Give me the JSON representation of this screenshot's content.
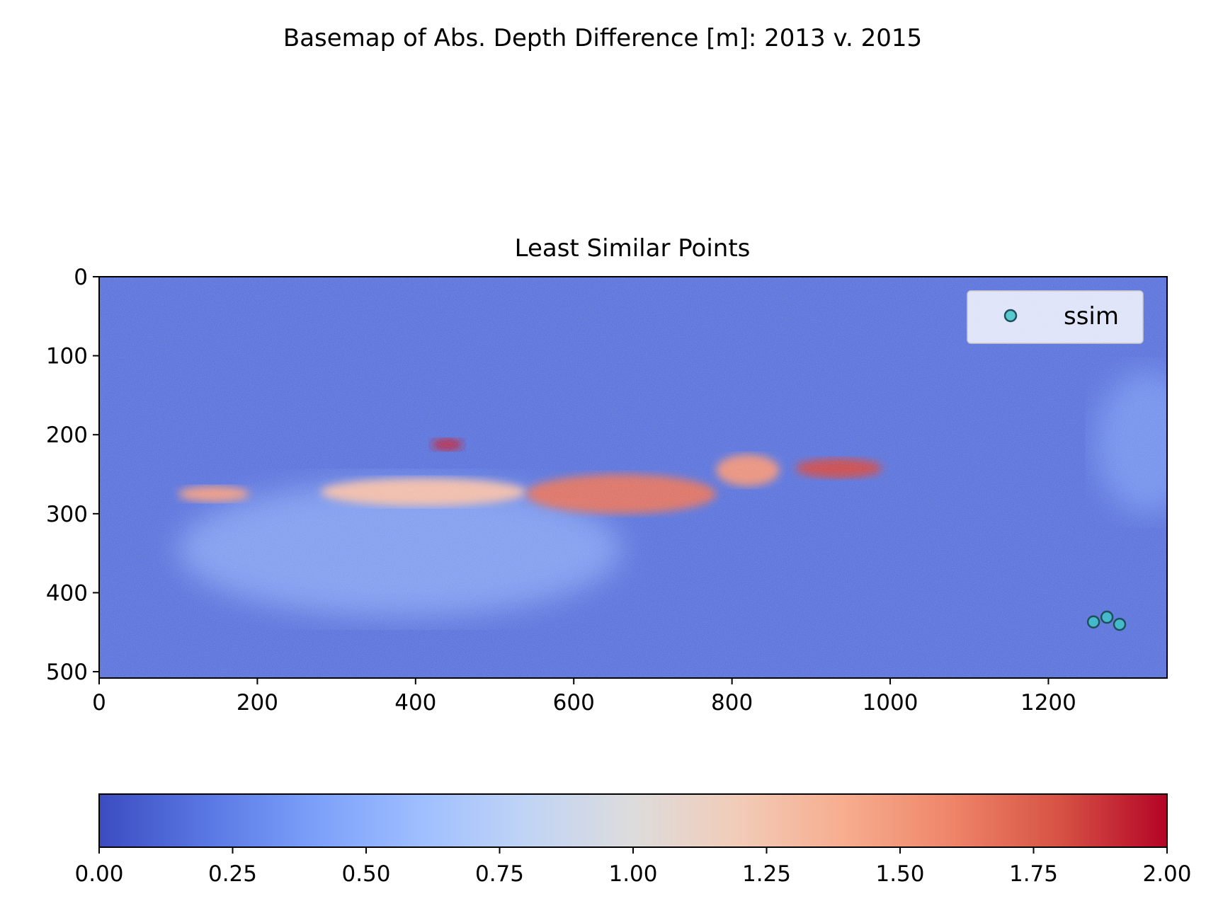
{
  "figure": {
    "suptitle": "Basemap of Abs. Depth Difference [m]: 2013 v. 2015"
  },
  "chart_data": [
    {
      "type": "heatmap",
      "title": "Least Similar Points",
      "xlabel": "",
      "ylabel": "",
      "xlim": [
        0,
        1350
      ],
      "ylim": [
        508,
        0
      ],
      "x_ticks": [
        0,
        200,
        400,
        600,
        800,
        1000,
        1200
      ],
      "y_ticks": [
        0,
        100,
        200,
        300,
        400,
        500
      ],
      "colormap": "coolwarm",
      "value_range": [
        0,
        2
      ],
      "background_value": 0.15,
      "features": [
        {
          "x": [
            100,
            190
          ],
          "y": [
            265,
            285
          ],
          "value": 1.5
        },
        {
          "x": [
            280,
            540
          ],
          "y": [
            255,
            290
          ],
          "value": 1.3
        },
        {
          "x": [
            420,
            460
          ],
          "y": [
            205,
            220
          ],
          "value": 1.95
        },
        {
          "x": [
            540,
            780
          ],
          "y": [
            250,
            300
          ],
          "value": 1.7
        },
        {
          "x": [
            780,
            860
          ],
          "y": [
            225,
            265
          ],
          "value": 1.55
        },
        {
          "x": [
            880,
            990
          ],
          "y": [
            230,
            255
          ],
          "value": 1.85
        },
        {
          "x": [
            100,
            660
          ],
          "y": [
            260,
            430
          ],
          "value": 0.6
        },
        {
          "x": [
            1260,
            1390
          ],
          "y": [
            120,
            300
          ],
          "value": 0.45
        }
      ],
      "scatter": {
        "name": "ssim",
        "marker_color": "#40c4c8",
        "edge_color": "#1f4f5a",
        "points": [
          {
            "x": 1257,
            "y": 437
          },
          {
            "x": 1274,
            "y": 431
          },
          {
            "x": 1290,
            "y": 440
          }
        ]
      },
      "legend": {
        "position": "top-right",
        "entries": [
          "ssim"
        ]
      }
    },
    {
      "type": "colorbar",
      "orientation": "horizontal",
      "colormap": "coolwarm",
      "range": [
        0,
        2
      ],
      "ticks": [
        "0.00",
        "0.25",
        "0.50",
        "0.75",
        "1.00",
        "1.25",
        "1.50",
        "1.75",
        "2.00"
      ],
      "colors": [
        "#3b4cc0",
        "#5977e3",
        "#7b9ff9",
        "#9ebeff",
        "#c0d4f5",
        "#dddcdc",
        "#f2cbb7",
        "#f7ac8e",
        "#ee8468",
        "#d65244",
        "#b40426"
      ]
    }
  ]
}
